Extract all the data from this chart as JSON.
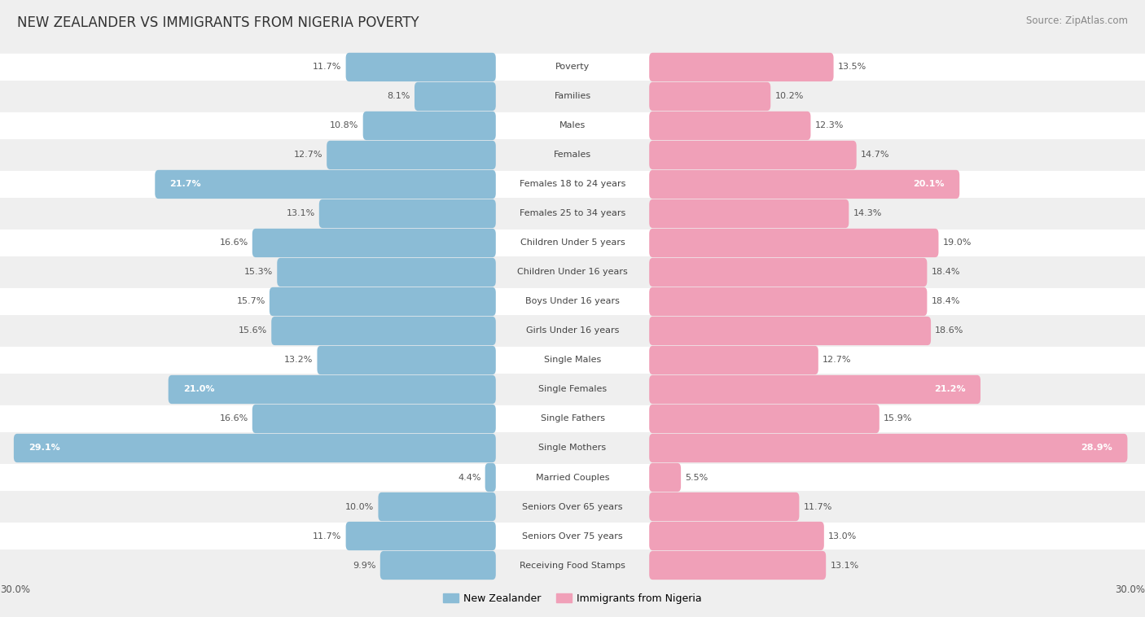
{
  "title": "NEW ZEALANDER VS IMMIGRANTS FROM NIGERIA POVERTY",
  "source": "Source: ZipAtlas.com",
  "categories": [
    "Poverty",
    "Families",
    "Males",
    "Females",
    "Females 18 to 24 years",
    "Females 25 to 34 years",
    "Children Under 5 years",
    "Children Under 16 years",
    "Boys Under 16 years",
    "Girls Under 16 years",
    "Single Males",
    "Single Females",
    "Single Fathers",
    "Single Mothers",
    "Married Couples",
    "Seniors Over 65 years",
    "Seniors Over 75 years",
    "Receiving Food Stamps"
  ],
  "left_values": [
    11.7,
    8.1,
    10.8,
    12.7,
    21.7,
    13.1,
    16.6,
    15.3,
    15.7,
    15.6,
    13.2,
    21.0,
    16.6,
    29.1,
    4.4,
    10.0,
    11.7,
    9.9
  ],
  "right_values": [
    13.5,
    10.2,
    12.3,
    14.7,
    20.1,
    14.3,
    19.0,
    18.4,
    18.4,
    18.6,
    12.7,
    21.2,
    15.9,
    28.9,
    5.5,
    11.7,
    13.0,
    13.1
  ],
  "left_color": "#8bbcd6",
  "right_color": "#f0a0b8",
  "left_label": "New Zealander",
  "right_label": "Immigrants from Nigeria",
  "max_val": 30.0,
  "bg_color": "#efefef",
  "title_fontsize": 12,
  "source_fontsize": 8.5,
  "label_fontsize": 8.0,
  "value_fontsize": 8.0,
  "inside_value_threshold": 19.5
}
